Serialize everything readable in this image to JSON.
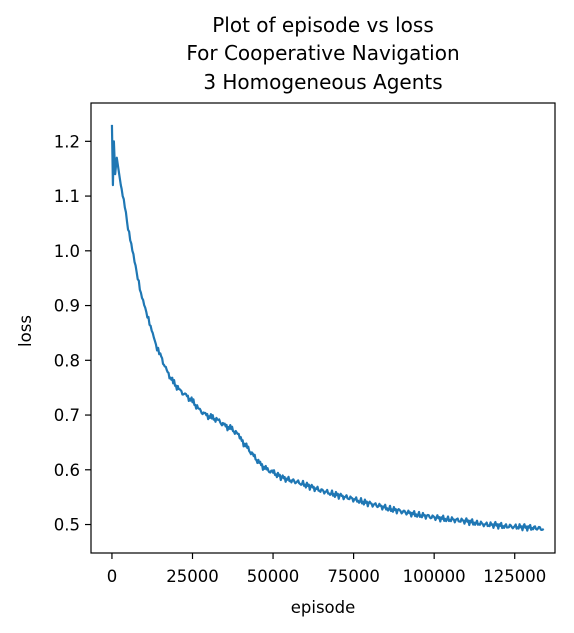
{
  "chart_data": {
    "type": "line",
    "title": [
      "Plot of episode vs loss",
      "For Cooperative Navigation",
      "3 Homogeneous Agents"
    ],
    "xlabel": "episode",
    "ylabel": "loss",
    "xlim": [
      -6500,
      137500
    ],
    "ylim": [
      0.448,
      1.27
    ],
    "xticks": [
      0,
      25000,
      50000,
      75000,
      100000,
      125000
    ],
    "xtick_labels": [
      "0",
      "25000",
      "50000",
      "75000",
      "100000",
      "125000"
    ],
    "yticks": [
      0.5,
      0.6,
      0.7,
      0.8,
      0.9,
      1.0,
      1.1,
      1.2
    ],
    "ytick_labels": [
      "0.5",
      "0.6",
      "0.7",
      "0.8",
      "0.9",
      "1.0",
      "1.1",
      "1.2"
    ],
    "grid": false,
    "legend": false,
    "series_color": "#1f77b4",
    "series": [
      {
        "x": [
          0,
          300,
          600,
          1000,
          1500,
          2000,
          2500,
          3000,
          4000,
          5000,
          6000,
          7000,
          8000,
          9000,
          10000,
          11000,
          12000,
          13000,
          14000,
          15000,
          17000,
          19000,
          21000,
          23000,
          25000,
          27000,
          29000,
          31000,
          33000,
          35000,
          37000,
          39000,
          40000,
          42000,
          44000,
          46000,
          48000,
          50000,
          53000,
          56000,
          59000,
          62000,
          65000,
          68000,
          71000,
          74000,
          77000,
          80000,
          83000,
          86000,
          89000,
          92000,
          95000,
          98000,
          101000,
          104000,
          107000,
          110000,
          113000,
          116000,
          119000,
          122000,
          125000,
          128000,
          131000,
          134000
        ],
        "y": [
          1.23,
          1.12,
          1.2,
          1.14,
          1.17,
          1.15,
          1.13,
          1.11,
          1.08,
          1.04,
          1.01,
          0.98,
          0.95,
          0.92,
          0.9,
          0.88,
          0.86,
          0.84,
          0.82,
          0.81,
          0.78,
          0.76,
          0.745,
          0.735,
          0.725,
          0.71,
          0.7,
          0.695,
          0.69,
          0.68,
          0.675,
          0.665,
          0.655,
          0.64,
          0.625,
          0.61,
          0.6,
          0.595,
          0.585,
          0.58,
          0.575,
          0.568,
          0.562,
          0.557,
          0.552,
          0.548,
          0.543,
          0.538,
          0.534,
          0.529,
          0.525,
          0.521,
          0.518,
          0.515,
          0.512,
          0.51,
          0.508,
          0.506,
          0.503,
          0.5,
          0.499,
          0.497,
          0.496,
          0.495,
          0.494,
          0.492
        ]
      }
    ]
  }
}
